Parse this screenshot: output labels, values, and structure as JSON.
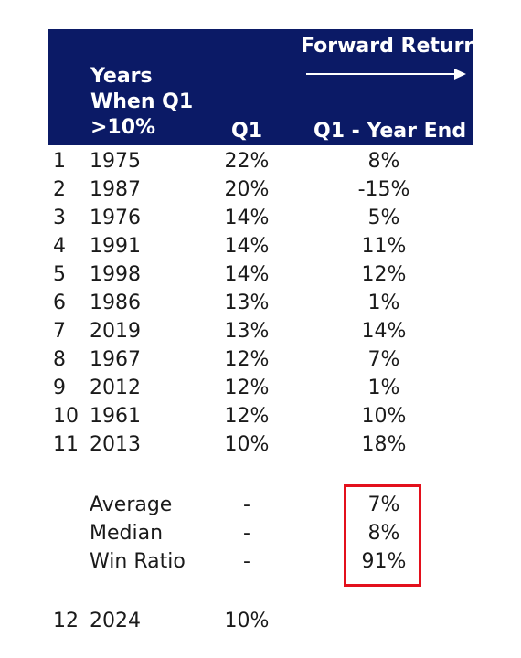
{
  "header": {
    "years_lines": [
      "Years",
      "When Q1",
      ">10%"
    ],
    "q1": "Q1",
    "forward_return": "Forward Return",
    "forward_column": "Q1 - Year End"
  },
  "rows": [
    {
      "idx": "1",
      "year": "1975",
      "q1": "22%",
      "fwd": "8%"
    },
    {
      "idx": "2",
      "year": "1987",
      "q1": "20%",
      "fwd": "-15%"
    },
    {
      "idx": "3",
      "year": "1976",
      "q1": "14%",
      "fwd": "5%"
    },
    {
      "idx": "4",
      "year": "1991",
      "q1": "14%",
      "fwd": "11%"
    },
    {
      "idx": "5",
      "year": "1998",
      "q1": "14%",
      "fwd": "12%"
    },
    {
      "idx": "6",
      "year": "1986",
      "q1": "13%",
      "fwd": "1%"
    },
    {
      "idx": "7",
      "year": "2019",
      "q1": "13%",
      "fwd": "14%"
    },
    {
      "idx": "8",
      "year": "1967",
      "q1": "12%",
      "fwd": "7%"
    },
    {
      "idx": "9",
      "year": "2012",
      "q1": "12%",
      "fwd": "1%"
    },
    {
      "idx": "10",
      "year": "1961",
      "q1": "12%",
      "fwd": "10%"
    },
    {
      "idx": "11",
      "year": "2013",
      "q1": "10%",
      "fwd": "18%"
    }
  ],
  "summary": [
    {
      "label": "Average",
      "q1": "-",
      "fwd": "7%"
    },
    {
      "label": "Median",
      "q1": "-",
      "fwd": "8%"
    },
    {
      "label": "Win Ratio",
      "q1": "-",
      "fwd": "91%"
    }
  ],
  "current": {
    "idx": "12",
    "year": "2024",
    "q1": "10%"
  },
  "colors": {
    "header_bg": "#0b1a66",
    "highlight": "#e3101c"
  }
}
